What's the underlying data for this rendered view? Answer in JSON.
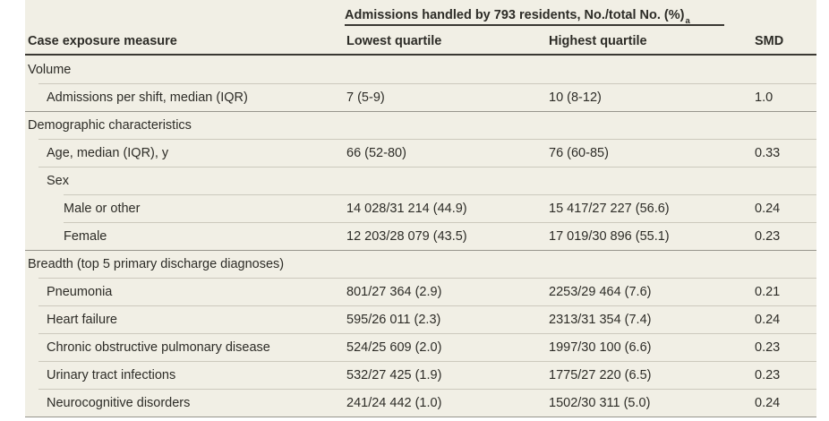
{
  "table": {
    "spanner": {
      "text": "Admissions handled by 793 residents, No./total No. (%)",
      "footnote_mark": "a"
    },
    "columns": {
      "measure": "Case exposure measure",
      "lowest": "Lowest quartile",
      "highest": "Highest quartile",
      "smd": "SMD"
    },
    "rows": [
      {
        "label": "Volume",
        "lowest": "",
        "highest": "",
        "smd": ""
      },
      {
        "label": "Admissions per shift, median (IQR)",
        "lowest": "7 (5-9)",
        "highest": "10 (8-12)",
        "smd": "1.0"
      },
      {
        "label": "Demographic characteristics",
        "lowest": "",
        "highest": "",
        "smd": ""
      },
      {
        "label": "Age, median (IQR), y",
        "lowest": "66 (52-80)",
        "highest": "76 (60-85)",
        "smd": "0.33"
      },
      {
        "label": "Sex",
        "lowest": "",
        "highest": "",
        "smd": ""
      },
      {
        "label": "Male or other",
        "lowest": "14 028/31 214 (44.9)",
        "highest": "15 417/27 227 (56.6)",
        "smd": "0.24"
      },
      {
        "label": "Female",
        "lowest": "12 203/28 079 (43.5)",
        "highest": "17 019/30 896 (55.1)",
        "smd": "0.23"
      },
      {
        "label": "Breadth (top 5 primary discharge diagnoses)",
        "lowest": "",
        "highest": "",
        "smd": ""
      },
      {
        "label": "Pneumonia",
        "lowest": "801/27 364 (2.9)",
        "highest": "2253/29 464 (7.6)",
        "smd": "0.21"
      },
      {
        "label": "Heart failure",
        "lowest": "595/26 011 (2.3)",
        "highest": "2313/31 354 (7.4)",
        "smd": "0.24"
      },
      {
        "label": "Chronic obstructive pulmonary disease",
        "lowest": "524/25 609 (2.0)",
        "highest": "1997/30 100 (6.6)",
        "smd": "0.23"
      },
      {
        "label": "Urinary tract infections",
        "lowest": "532/27 425 (1.9)",
        "highest": "1775/27 220 (6.5)",
        "smd": "0.23"
      },
      {
        "label": "Neurocognitive disorders",
        "lowest": "241/24 442 (1.0)",
        "highest": "1502/30 311 (5.0)",
        "smd": "0.24"
      }
    ]
  },
  "colors": {
    "table_background": "#f1efe5",
    "heavy_rule": "#3a3833",
    "medium_rule": "#97958c",
    "thin_rule": "#ccc9bd",
    "text": "#2d2c27"
  },
  "chart_data": {
    "type": "table",
    "title": "Admissions handled by 793 residents, No./total No. (%)",
    "columns": [
      "Case exposure measure",
      "Lowest quartile",
      "Highest quartile",
      "SMD"
    ],
    "rows": [
      [
        "Volume",
        "",
        "",
        ""
      ],
      [
        "Admissions per shift, median (IQR)",
        "7 (5-9)",
        "10 (8-12)",
        "1.0"
      ],
      [
        "Demographic characteristics",
        "",
        "",
        ""
      ],
      [
        "Age, median (IQR), y",
        "66 (52-80)",
        "76 (60-85)",
        "0.33"
      ],
      [
        "Sex",
        "",
        "",
        ""
      ],
      [
        "Male or other",
        "14 028/31 214 (44.9)",
        "15 417/27 227 (56.6)",
        "0.24"
      ],
      [
        "Female",
        "12 203/28 079 (43.5)",
        "17 019/30 896 (55.1)",
        "0.23"
      ],
      [
        "Breadth (top 5 primary discharge diagnoses)",
        "",
        "",
        ""
      ],
      [
        "Pneumonia",
        "801/27 364 (2.9)",
        "2253/29 464 (7.6)",
        "0.21"
      ],
      [
        "Heart failure",
        "595/26 011 (2.3)",
        "2313/31 354 (7.4)",
        "0.24"
      ],
      [
        "Chronic obstructive pulmonary disease",
        "524/25 609 (2.0)",
        "1997/30 100 (6.6)",
        "0.23"
      ],
      [
        "Urinary tract infections",
        "532/27 425 (1.9)",
        "1775/27 220 (6.5)",
        "0.23"
      ],
      [
        "Neurocognitive disorders",
        "241/24 442 (1.0)",
        "1502/30 311 (5.0)",
        "0.24"
      ]
    ]
  }
}
